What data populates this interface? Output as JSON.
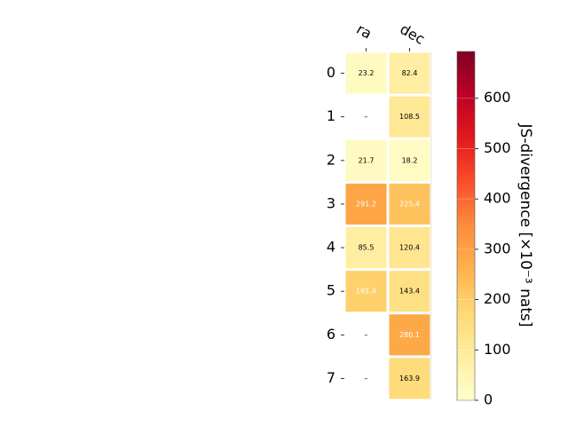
{
  "chart_data": {
    "type": "heatmap",
    "title": "",
    "columns": [
      "ra",
      "dec"
    ],
    "rows": [
      "0",
      "1",
      "2",
      "3",
      "4",
      "5",
      "6",
      "7"
    ],
    "values": [
      [
        23.2,
        82.4
      ],
      [
        null,
        108.5
      ],
      [
        21.7,
        18.2
      ],
      [
        291.2,
        225.4
      ],
      [
        85.5,
        120.4
      ],
      [
        191.4,
        143.4
      ],
      [
        null,
        280.1
      ],
      [
        null,
        163.9
      ]
    ],
    "missing_label": "–",
    "colorbar": {
      "label": "JS-divergence [×10⁻³ nats]",
      "range": [
        0,
        693
      ],
      "ticks": [
        0,
        100,
        200,
        300,
        400,
        500,
        600
      ],
      "colormap": "YlOrRd",
      "colors": [
        "#ffffcc",
        "#ffeda0",
        "#fed976",
        "#feb24c",
        "#fd8d3c",
        "#fc4e2a",
        "#e31a1c",
        "#bd0026",
        "#800026"
      ]
    },
    "grid": false
  }
}
